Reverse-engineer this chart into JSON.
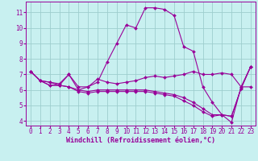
{
  "xlabel": "Windchill (Refroidissement éolien,°C)",
  "bg_color": "#c8f0f0",
  "line_color": "#990099",
  "grid_color": "#aadddd",
  "xlim": [
    -0.5,
    23.5
  ],
  "ylim": [
    3.7,
    11.7
  ],
  "xticks": [
    0,
    1,
    2,
    3,
    4,
    5,
    6,
    7,
    8,
    9,
    10,
    11,
    12,
    13,
    14,
    15,
    16,
    17,
    18,
    19,
    20,
    21,
    22,
    23
  ],
  "yticks": [
    4,
    5,
    6,
    7,
    8,
    9,
    10,
    11
  ],
  "line1_x": [
    0,
    1,
    2,
    3,
    4,
    5,
    6,
    7,
    8,
    9,
    10,
    11,
    12,
    13,
    14,
    15,
    16,
    17,
    18,
    19,
    20,
    21,
    22,
    23
  ],
  "line1_y": [
    7.2,
    6.6,
    6.5,
    6.3,
    7.0,
    6.2,
    6.2,
    6.5,
    7.8,
    9.0,
    10.2,
    10.0,
    11.3,
    11.3,
    11.2,
    10.8,
    8.8,
    8.5,
    6.2,
    5.2,
    4.4,
    3.9,
    6.2,
    6.2
  ],
  "line2_x": [
    0,
    1,
    2,
    3,
    4,
    5,
    6,
    7,
    8,
    9,
    10,
    11,
    12,
    13,
    14,
    15,
    16,
    17,
    18,
    19,
    20,
    21,
    22,
    23
  ],
  "line2_y": [
    7.2,
    6.6,
    6.5,
    6.4,
    7.0,
    6.0,
    6.2,
    6.7,
    6.5,
    6.4,
    6.5,
    6.6,
    6.8,
    6.9,
    6.8,
    6.9,
    7.0,
    7.2,
    7.0,
    7.0,
    7.1,
    7.0,
    6.2,
    7.5
  ],
  "line3_x": [
    0,
    1,
    2,
    3,
    4,
    5,
    6,
    7,
    8,
    9,
    10,
    11,
    12,
    13,
    14,
    15,
    16,
    17,
    18,
    19,
    20,
    21,
    22,
    23
  ],
  "line3_y": [
    7.2,
    6.6,
    6.3,
    6.3,
    6.2,
    6.0,
    5.9,
    6.0,
    6.0,
    6.0,
    6.0,
    6.0,
    6.0,
    5.9,
    5.8,
    5.7,
    5.5,
    5.2,
    4.8,
    4.4,
    4.4,
    4.3,
    6.1,
    7.5
  ],
  "line4_x": [
    0,
    1,
    2,
    3,
    4,
    5,
    6,
    7,
    8,
    9,
    10,
    11,
    12,
    13,
    14,
    15,
    16,
    17,
    18,
    19,
    20,
    21,
    22,
    23
  ],
  "line4_y": [
    7.2,
    6.6,
    6.3,
    6.3,
    6.2,
    5.9,
    5.8,
    5.9,
    5.9,
    5.9,
    5.9,
    5.9,
    5.9,
    5.8,
    5.7,
    5.6,
    5.3,
    5.0,
    4.6,
    4.3,
    4.4,
    4.3,
    6.1,
    7.5
  ],
  "marker": "D",
  "markersize": 2.0,
  "linewidth": 0.8,
  "tick_fontsize": 5.5,
  "xlabel_fontsize": 6.0,
  "tick_color": "#990099",
  "xlabel_color": "#990099"
}
